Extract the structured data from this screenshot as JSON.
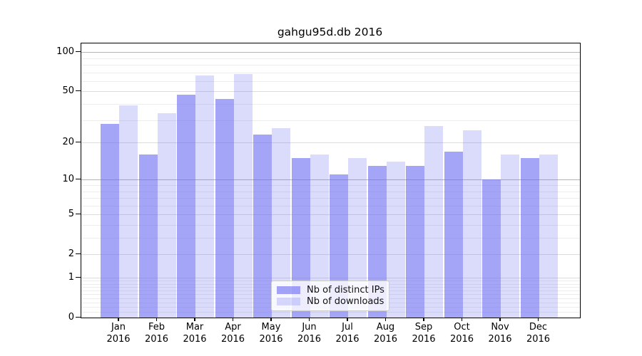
{
  "title": "gahgu95d.db 2016",
  "chart_data": {
    "type": "bar",
    "title": "gahgu95d.db 2016",
    "x": [
      "Jan",
      "Feb",
      "Mar",
      "Apr",
      "May",
      "Jun",
      "Jul",
      "Aug",
      "Sep",
      "Oct",
      "Nov",
      "Dec"
    ],
    "x_year": "2016",
    "series": [
      {
        "name": "Nb of distinct IPs",
        "values": [
          28,
          16,
          47,
          44,
          23,
          15,
          11,
          13,
          13,
          17,
          10,
          15
        ],
        "color": "rgba(110,110,242,0.62)"
      },
      {
        "name": "Nb of downloads",
        "values": [
          39,
          34,
          66,
          68,
          26,
          16,
          15,
          14,
          27,
          25,
          16,
          16
        ],
        "color": "rgba(110,110,242,0.25)"
      }
    ],
    "y_ticks": [
      100,
      50,
      20,
      10,
      5,
      2,
      1,
      0
    ],
    "y_minor_ticks": [
      90,
      80,
      70,
      60,
      40,
      30,
      9,
      8,
      7,
      6,
      4,
      3,
      0.9,
      0.8,
      0.7,
      0.6,
      0.5,
      0.4,
      0.3,
      0.2,
      0.1
    ],
    "y_scale": "log10(value+1)",
    "ylim": [
      0,
      117
    ],
    "grid": true,
    "legend_position": "lower-center"
  },
  "legend": {
    "entries": [
      "Nb of distinct IPs",
      "Nb of downloads"
    ]
  },
  "colors": {
    "bar_distinct_ips": "rgba(110,110,242,0.62)",
    "bar_downloads": "rgba(110,110,242,0.25)",
    "grid_major_decade": "#b4b4b4",
    "grid_major": "#dcdcdc",
    "grid_minor": "#ededed",
    "spine": "#000000",
    "legend_border": "#cccccc",
    "legend_bg": "rgba(255,255,255,0.8)",
    "text": "#000000"
  }
}
